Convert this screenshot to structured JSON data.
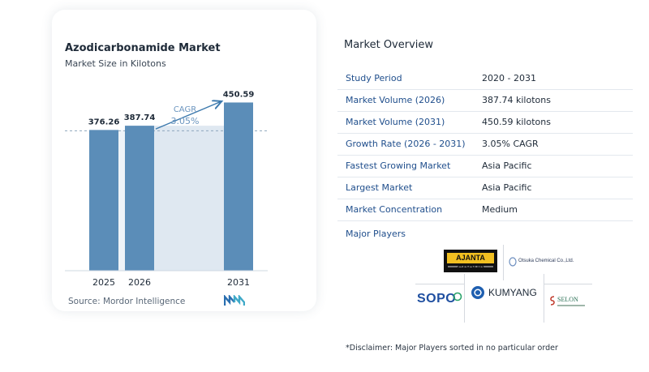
{
  "chart": {
    "title": "Azodicarbonamide Market",
    "subtitle": "Market Size in Kilotons",
    "source": "Source:  Mordor Intelligence",
    "cagr_label": "CAGR",
    "cagr_value": "3.05%"
  },
  "chart_data": {
    "type": "bar",
    "title": "Azodicarbonamide Market",
    "subtitle": "Market Size in Kilotons",
    "categories": [
      "2025",
      "2026",
      "2031"
    ],
    "values": [
      376.26,
      387.74,
      450.59
    ],
    "value_labels": [
      "376.26",
      "387.74",
      "450.59"
    ],
    "ylim": [
      0,
      480
    ],
    "grid": false,
    "annotation": {
      "text": "CAGR 3.05%",
      "from": "2026",
      "to": "2031"
    },
    "colors": {
      "bar": "#5b8db8",
      "shade": "#dfe8f1",
      "arrow": "#3c79ad",
      "annotation": "#6b95bf"
    }
  },
  "overview": {
    "title": "Market Overview",
    "rows": [
      {
        "key": "Study Period",
        "value": "2020 - 2031"
      },
      {
        "key": "Market Volume (2026)",
        "value": "387.74 kilotons"
      },
      {
        "key": "Market Volume (2031)",
        "value": "450.59 kilotons"
      },
      {
        "key": "Growth Rate (2026 - 2031)",
        "value": "3.05% CAGR"
      },
      {
        "key": "Fastest Growing Market",
        "value": "Asia Pacific"
      },
      {
        "key": "Largest Market",
        "value": "Asia Pacific"
      },
      {
        "key": "Market Concentration",
        "value": "Medium"
      }
    ],
    "players_title": "Major Players"
  },
  "players": {
    "ajanta": "AJANTA GROUP",
    "otsuka": "Otsuka Chemical Co.,Ltd.",
    "sopo": "SOPO",
    "kumyang": "KUMYANG",
    "selon": "SELON"
  },
  "disclaimer": "*Disclaimer: Major Players sorted in no particular order"
}
